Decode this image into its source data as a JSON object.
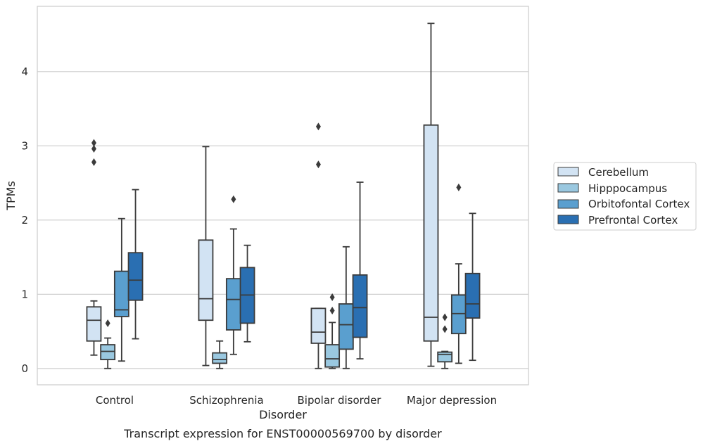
{
  "chart_data": {
    "type": "box",
    "title": "Transcript expression for ENST00000569700 by disorder",
    "xlabel": "Disorder",
    "ylabel": "TPMs",
    "ylim": [
      -0.22,
      4.88
    ],
    "yticks": [
      0,
      1,
      2,
      3,
      4
    ],
    "grid": "horizontal",
    "legend_position": "right",
    "categories": [
      "Control",
      "Schizophrenia",
      "Bipolar disorder",
      "Major depression"
    ],
    "series": [
      {
        "name": "Cerebellum",
        "color": "#d2e3f3",
        "boxes": [
          {
            "whisker_low": 0.18,
            "q1": 0.37,
            "median": 0.65,
            "q3": 0.83,
            "whisker_high": 0.91,
            "outliers": [
              2.78,
              2.96,
              3.04
            ]
          },
          {
            "whisker_low": 0.04,
            "q1": 0.65,
            "median": 0.94,
            "q3": 1.73,
            "whisker_high": 2.99,
            "outliers": []
          },
          {
            "whisker_low": 0.0,
            "q1": 0.34,
            "median": 0.49,
            "q3": 0.81,
            "whisker_high": 0.81,
            "outliers": [
              2.75,
              3.26
            ]
          },
          {
            "whisker_low": 0.03,
            "q1": 0.37,
            "median": 0.69,
            "q3": 3.28,
            "whisker_high": 4.65,
            "outliers": []
          }
        ]
      },
      {
        "name": "Hipppocampus",
        "color": "#9ac8e0",
        "boxes": [
          {
            "whisker_low": 0.0,
            "q1": 0.12,
            "median": 0.23,
            "q3": 0.32,
            "whisker_high": 0.41,
            "outliers": [
              0.61
            ]
          },
          {
            "whisker_low": 0.0,
            "q1": 0.07,
            "median": 0.12,
            "q3": 0.21,
            "whisker_high": 0.37,
            "outliers": []
          },
          {
            "whisker_low": 0.0,
            "q1": 0.02,
            "median": 0.13,
            "q3": 0.32,
            "whisker_high": 0.62,
            "outliers": [
              0.78,
              0.96
            ]
          },
          {
            "whisker_low": 0.0,
            "q1": 0.09,
            "median": 0.19,
            "q3": 0.22,
            "whisker_high": 0.23,
            "outliers": [
              0.53,
              0.69
            ]
          }
        ]
      },
      {
        "name": "Orbitofontal Cortex",
        "color": "#5a9fcf",
        "boxes": [
          {
            "whisker_low": 0.1,
            "q1": 0.7,
            "median": 0.79,
            "q3": 1.31,
            "whisker_high": 2.02,
            "outliers": []
          },
          {
            "whisker_low": 0.19,
            "q1": 0.52,
            "median": 0.93,
            "q3": 1.21,
            "whisker_high": 1.88,
            "outliers": [
              2.28
            ]
          },
          {
            "whisker_low": 0.0,
            "q1": 0.26,
            "median": 0.59,
            "q3": 0.87,
            "whisker_high": 1.64,
            "outliers": []
          },
          {
            "whisker_low": 0.07,
            "q1": 0.47,
            "median": 0.74,
            "q3": 0.99,
            "whisker_high": 1.41,
            "outliers": [
              2.44
            ]
          }
        ]
      },
      {
        "name": "Prefrontal Cortex",
        "color": "#2a6fb2",
        "boxes": [
          {
            "whisker_low": 0.4,
            "q1": 0.92,
            "median": 1.19,
            "q3": 1.56,
            "whisker_high": 2.41,
            "outliers": []
          },
          {
            "whisker_low": 0.36,
            "q1": 0.61,
            "median": 0.99,
            "q3": 1.36,
            "whisker_high": 1.66,
            "outliers": []
          },
          {
            "whisker_low": 0.13,
            "q1": 0.42,
            "median": 0.82,
            "q3": 1.26,
            "whisker_high": 2.51,
            "outliers": []
          },
          {
            "whisker_low": 0.11,
            "q1": 0.68,
            "median": 0.87,
            "q3": 1.28,
            "whisker_high": 2.09,
            "outliers": []
          }
        ]
      }
    ]
  },
  "colors": {
    "line": "#3b3b3b",
    "grid": "#cccccc",
    "frame": "#cccccc"
  }
}
